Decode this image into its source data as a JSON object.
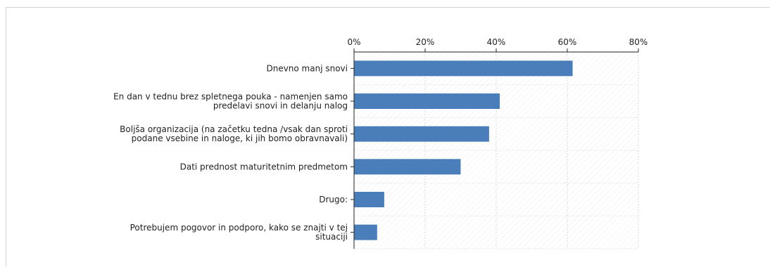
{
  "chart_data": {
    "type": "bar",
    "orientation": "horizontal",
    "title": "",
    "xlabel": "",
    "ylabel": "",
    "xlim": [
      0,
      80
    ],
    "x_ticks": [
      "0%",
      "20%",
      "40%",
      "60%",
      "80%"
    ],
    "grid": "vertical dashed",
    "categories": [
      [
        "Dnevno manj snovi"
      ],
      [
        "En dan v tednu brez spletnega pouka - namenjen samo",
        "predelavi snovi in delanju nalog"
      ],
      [
        "Boljša organizacija (na začetku tedna /vsak dan sproti",
        "podane vsebine in naloge, ki jih bomo obravnavali)"
      ],
      [
        "Dati prednost maturitetnim predmetom"
      ],
      [
        "Drugo:"
      ],
      [
        "Potrebujem pogovor in podporo, kako se znajti v tej",
        "situaciji"
      ]
    ],
    "values": [
      61.5,
      41,
      38,
      30,
      8.5,
      6.5
    ],
    "bar_color": "#4a7ebb"
  }
}
